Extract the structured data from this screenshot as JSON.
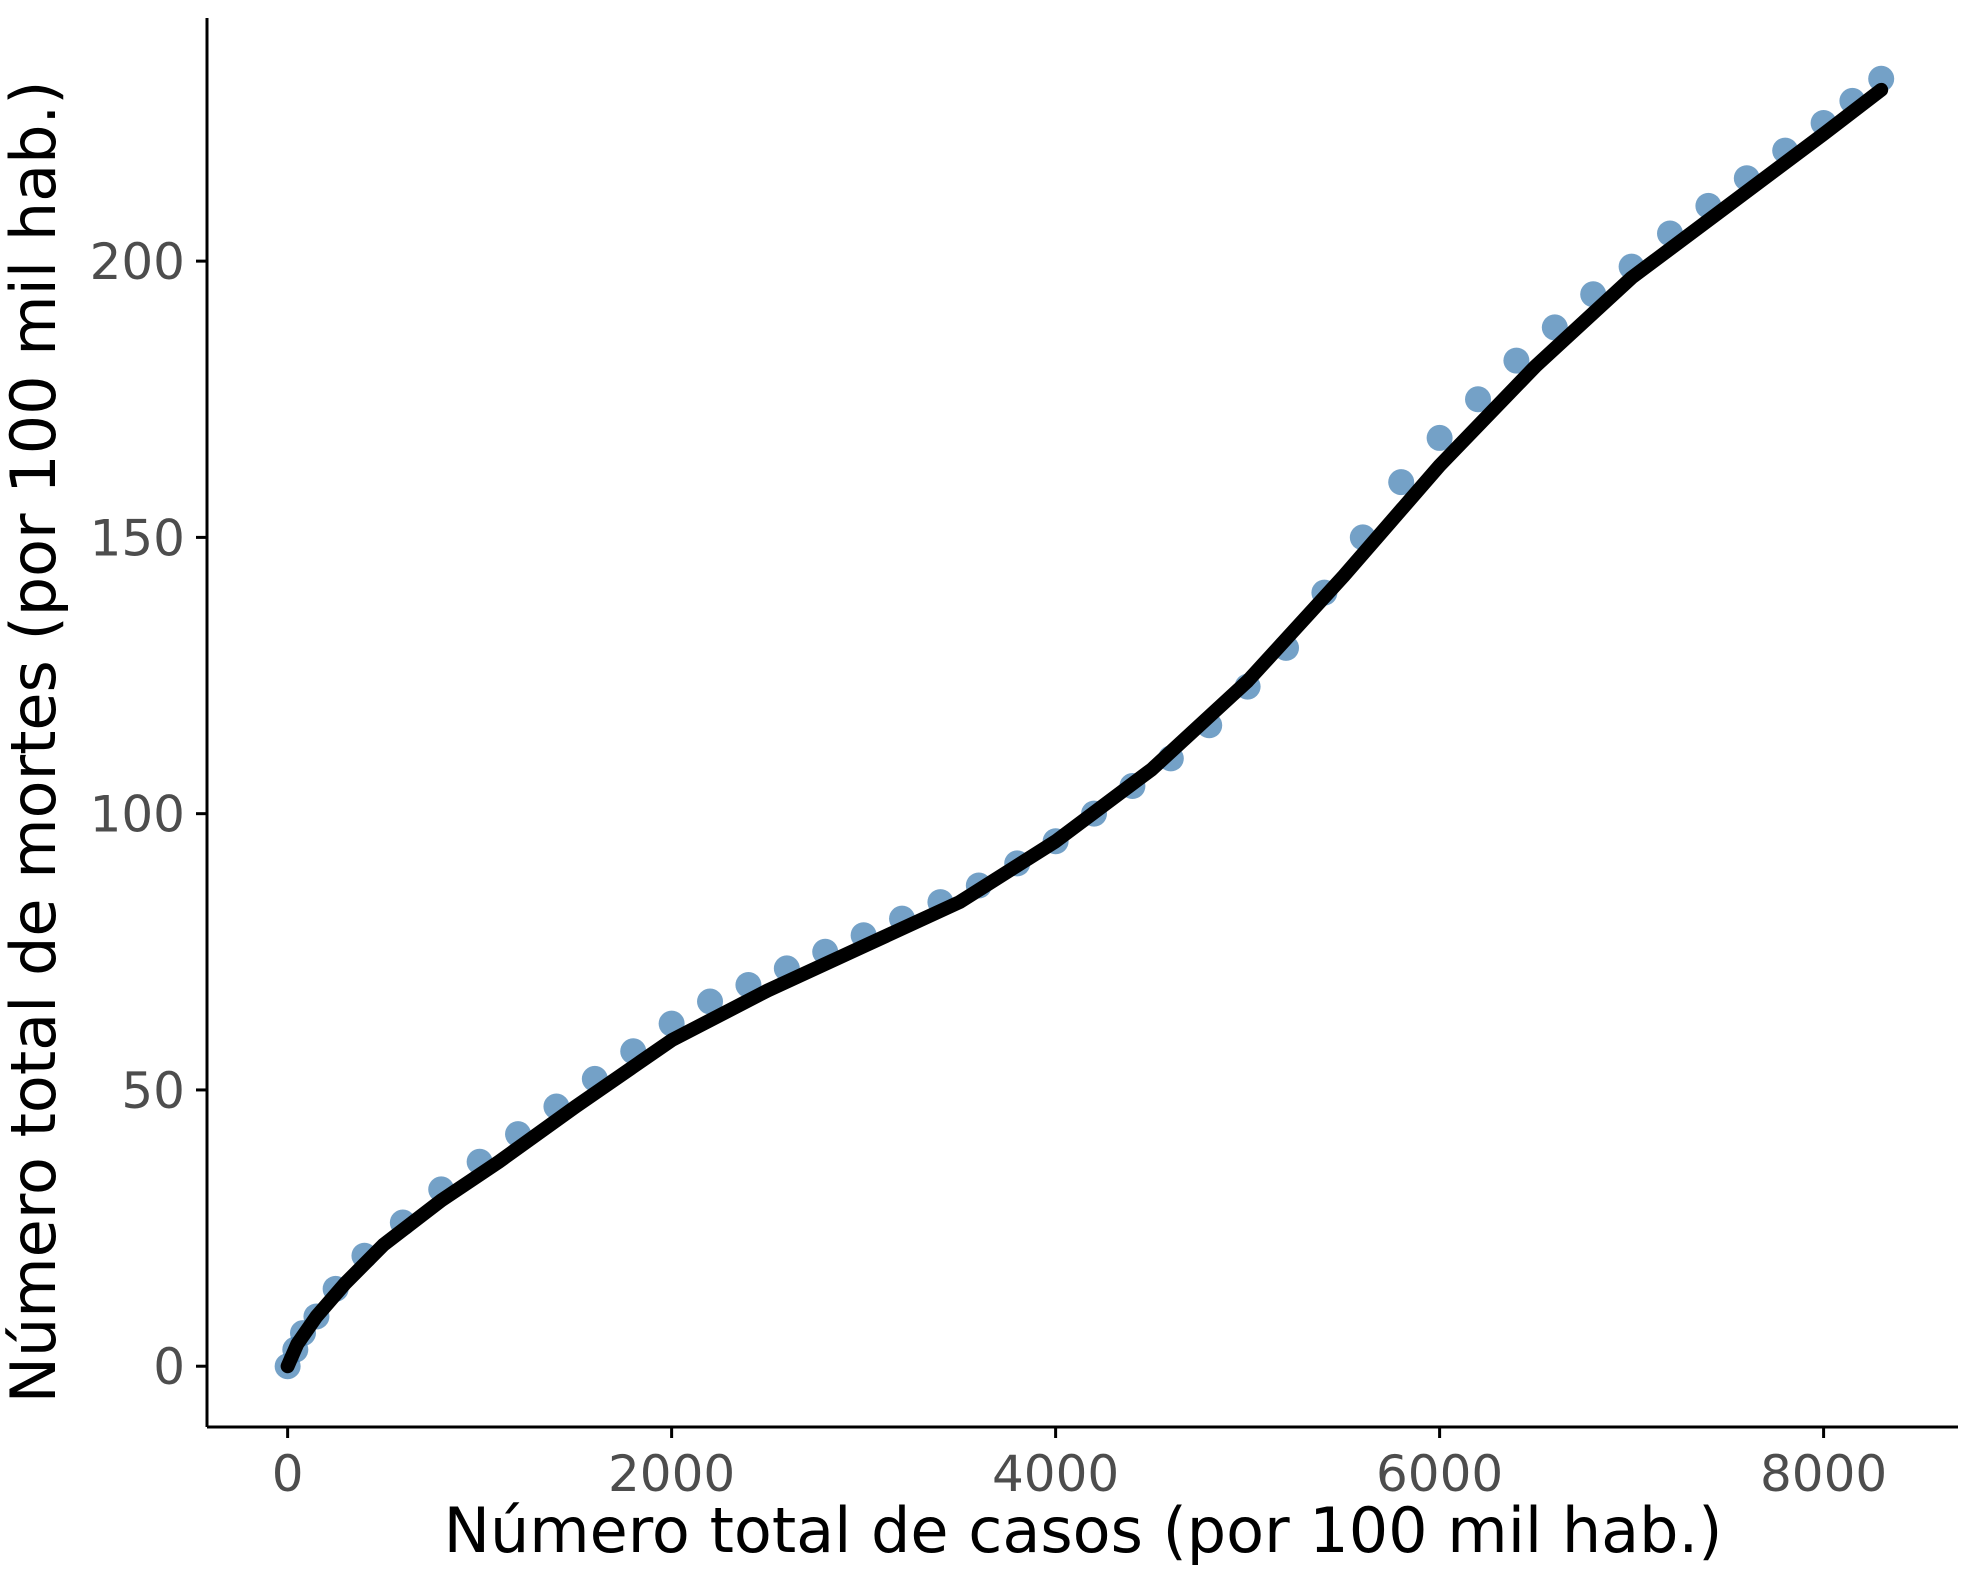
{
  "chart_data": {
    "type": "scatter",
    "xlabel": "Número total de casos (por 100 mil hab.)",
    "ylabel": "Número total de mortes (por 100 mil hab.)",
    "xlim": [
      -420,
      8700
    ],
    "ylim": [
      -11,
      244
    ],
    "x_ticks": [
      0,
      2000,
      4000,
      6000,
      8000
    ],
    "y_ticks": [
      0,
      50,
      100,
      150,
      200
    ],
    "x_tick_labels": [
      "0",
      "2000",
      "4000",
      "6000",
      "8000"
    ],
    "y_tick_labels": [
      "0",
      "50",
      "100",
      "150",
      "200"
    ],
    "grid": false,
    "legend": "none",
    "colors": {
      "points": "#4682b4",
      "trend": "#000000",
      "axis": "#000000",
      "tick_text": "#4d4d4d"
    },
    "series": [
      {
        "kind": "points",
        "x": [
          0,
          40,
          80,
          150,
          250,
          400,
          600,
          800,
          1000,
          1200,
          1400,
          1600,
          1800,
          2000,
          2200,
          2400,
          2600,
          2800,
          3000,
          3200,
          3400,
          3600,
          3800,
          4000,
          4200,
          4400,
          4600,
          4800,
          5000,
          5200,
          5400,
          5600,
          5800,
          6000,
          6200,
          6400,
          6600,
          6800,
          7000,
          7200,
          7400,
          7600,
          7800,
          8000,
          8150,
          8300
        ],
        "y": [
          0,
          3,
          6,
          9,
          14,
          20,
          26,
          32,
          37,
          42,
          47,
          52,
          57,
          62,
          66,
          69,
          72,
          75,
          78,
          81,
          84,
          87,
          91,
          95,
          100,
          105,
          110,
          116,
          123,
          130,
          140,
          150,
          160,
          168,
          175,
          182,
          188,
          194,
          199,
          205,
          210,
          215,
          220,
          225,
          229,
          233
        ]
      },
      {
        "kind": "trend",
        "x": [
          0,
          50,
          150,
          300,
          500,
          800,
          1100,
          1500,
          2000,
          2500,
          3000,
          3500,
          4000,
          4500,
          5000,
          5500,
          6000,
          6500,
          7000,
          7500,
          8000,
          8300
        ],
        "y": [
          0,
          4,
          9,
          15,
          22,
          30,
          37,
          47,
          59,
          68,
          76,
          84,
          95,
          108,
          124,
          143,
          163,
          181,
          197,
          210,
          223,
          231
        ]
      }
    ]
  }
}
